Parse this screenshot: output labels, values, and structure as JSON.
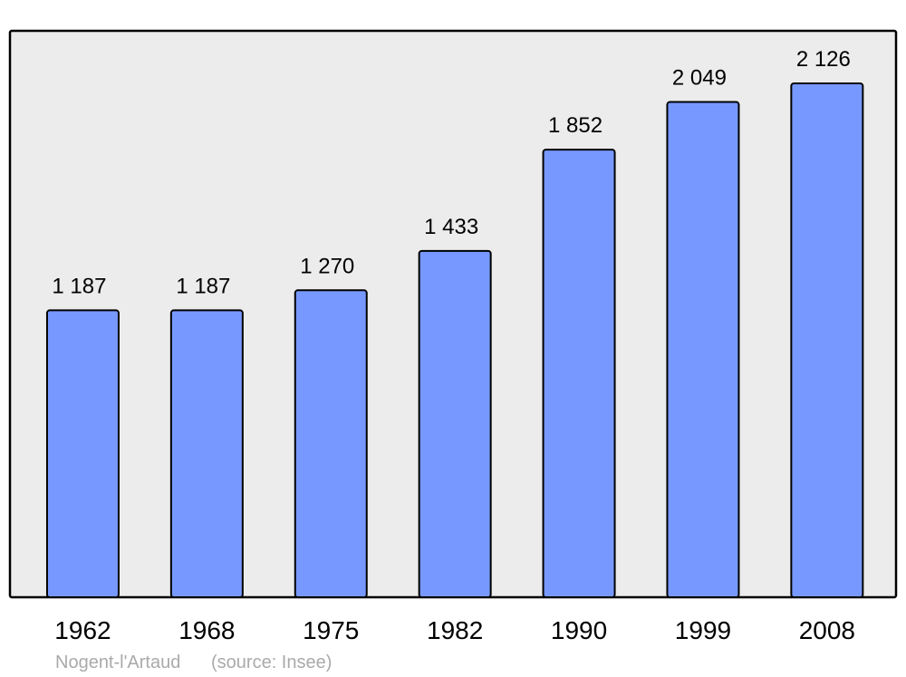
{
  "chart_data": {
    "type": "bar",
    "categories": [
      "1962",
      "1968",
      "1975",
      "1982",
      "1990",
      "1999",
      "2008"
    ],
    "values": [
      1187,
      1187,
      1270,
      1433,
      1852,
      2049,
      2126
    ],
    "value_labels": [
      "1 187",
      "1 187",
      "1 270",
      "1 433",
      "1 852",
      "2 049",
      "2 126"
    ],
    "color": "#7799ff",
    "annotations": [
      "Nogent-l'Artaud",
      "(source: Insee)"
    ]
  }
}
